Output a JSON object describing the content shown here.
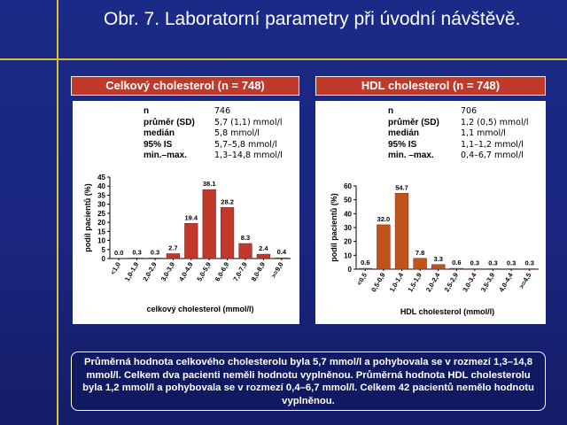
{
  "title": "Obr. 7. Laboratorní parametry při úvodní návštěvě.",
  "charts": [
    {
      "header": "Celkový cholesterol (n = 748)",
      "stats": [
        {
          "label": "n",
          "value": "746"
        },
        {
          "label": "průměr (SD)",
          "value": "5,7 (1,1) mmol/l"
        },
        {
          "label": "medián",
          "value": "5,8 mmol/l"
        },
        {
          "label": "95% IS",
          "value": "5,7–5,8 mmol/l"
        },
        {
          "label": "min.–max.",
          "value": "1,3–14,8 mmol/l"
        }
      ]
    },
    {
      "header": "HDL cholesterol (n = 748)",
      "stats": [
        {
          "label": "n",
          "value": "706"
        },
        {
          "label": "průměr (SD)",
          "value": "1,2 (0,5) mmol/l"
        },
        {
          "label": "medián",
          "value": "1,1 mmol/l"
        },
        {
          "label": "95% IS",
          "value": "1,1–1,2 mmol/l"
        },
        {
          "label": "min. –max.",
          "value": "0,4–6,7 mmol/l"
        }
      ]
    }
  ],
  "chart_data": [
    {
      "type": "bar",
      "title": "Celkový cholesterol (n = 748)",
      "xlabel": "celkový cholesterol (mmol/l)",
      "ylabel": "podíl pacientů (%)",
      "categories": [
        "<1,0",
        "1,0-1,9",
        "2,0-2,9",
        "3,0-3,9",
        "4,0-4,9",
        "5,0-5,9",
        "6,0-6,9",
        "7,0-7,9",
        "8,0-8,9",
        ">=9,0"
      ],
      "values": [
        0.0,
        0.3,
        0.3,
        2.7,
        19.4,
        38.1,
        28.2,
        8.3,
        2.4,
        0.4
      ],
      "value_labels": [
        "0.0",
        "0.3",
        "0.3",
        "2.7",
        "19.4",
        "38.1",
        "28.2",
        "8.3",
        "2.4",
        "0.4"
      ],
      "yticks": [
        0,
        5,
        10,
        15,
        20,
        25,
        30,
        35,
        40,
        45
      ],
      "ylim": [
        0,
        45
      ],
      "grid": false,
      "bar_color": "#c0392b"
    },
    {
      "type": "bar",
      "title": "HDL cholesterol (n = 748)",
      "xlabel": "HDL cholesterol (mmol/l)",
      "ylabel": "podíl pacientů (%)",
      "categories": [
        "<0,5",
        "0,5-0,9",
        "1,0-1,4",
        "1,5-1,9",
        "2,0-2,4",
        "2,5-2,9",
        "3,0-3,4",
        "3,5-3,9",
        "4,0-4,4",
        ">=4,5"
      ],
      "values": [
        0.6,
        32.0,
        54.7,
        7.8,
        3.3,
        0.6,
        0.3,
        0.3,
        0.3,
        0.3
      ],
      "value_labels": [
        "0.6",
        "32.0",
        "54.7",
        "7.8",
        "3.3",
        "0.6",
        "0.3",
        "0.3",
        "0.3",
        "0.3"
      ],
      "yticks": [
        0,
        10,
        20,
        30,
        40,
        50,
        60
      ],
      "ylim": [
        0,
        60
      ],
      "grid": false,
      "bar_color": "#c0551b"
    }
  ],
  "caption": "Průměrná hodnota celkového cholesterolu byla 5,7 mmol/l a pohybovala se v rozmezí 1,3–14,8 mmol/l.  Celkem dva pacienti neměli hodnotu vyplněnou. Průměrná hodnota HDL cholesterolu byla 1,2 mmol/l a pohybovala se v rozmezí 0,4–6,7 mmol/l. Celkem 42 pacientů nemělo hodnotu vyplněnou."
}
